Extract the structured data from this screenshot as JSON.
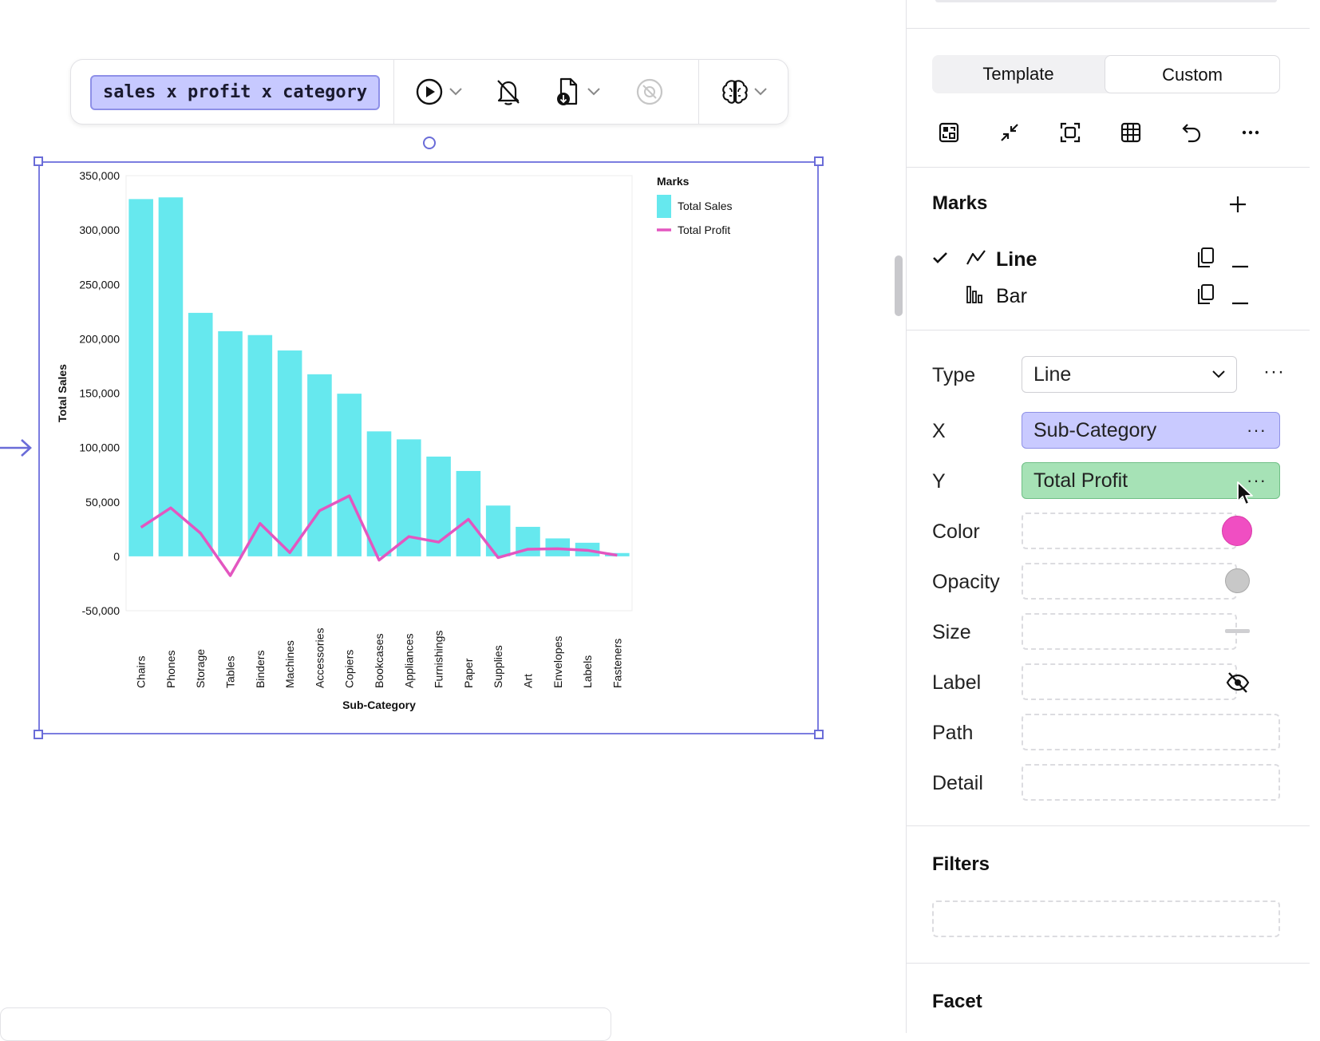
{
  "toolbar": {
    "title": "sales x profit x category",
    "buttons": [
      "play-icon",
      "bell-off-icon",
      "document-download-icon",
      "disabled-circle-icon",
      "brain-icon"
    ]
  },
  "chart_data": {
    "type": "bar",
    "categories": [
      "Chairs",
      "Phones",
      "Storage",
      "Tables",
      "Binders",
      "Machines",
      "Accessories",
      "Copiers",
      "Bookcases",
      "Appliances",
      "Furnishings",
      "Paper",
      "Supplies",
      "Art",
      "Envelopes",
      "Labels",
      "Fasteners"
    ],
    "series": [
      {
        "name": "Total Sales",
        "type": "bar",
        "color": "#66e8ee",
        "values": [
          328449,
          330007,
          223844,
          206966,
          203413,
          189239,
          167380,
          149528,
          114880,
          107532,
          91705,
          78479,
          46674,
          27119,
          16476,
          12486,
          3024
        ]
      },
      {
        "name": "Total Profit",
        "type": "line",
        "color": "#e356c0",
        "values": [
          26590,
          44516,
          21279,
          -17725,
          30222,
          3385,
          41937,
          55618,
          -3473,
          18138,
          13059,
          34054,
          -1189,
          6528,
          6964,
          5546,
          950
        ]
      }
    ],
    "ylabel": "Total Sales",
    "xlabel": "Sub-Category",
    "ylim": [
      -50000,
      350000
    ],
    "yticks": [
      350000,
      300000,
      250000,
      200000,
      150000,
      100000,
      50000,
      0,
      -50000
    ],
    "ytick_labels": [
      "350,000",
      "300,000",
      "250,000",
      "200,000",
      "150,000",
      "100,000",
      "50,000",
      "0",
      "-50,000"
    ],
    "legend": {
      "title": "Marks",
      "position": "top-right",
      "items": [
        "Total Sales",
        "Total Profit"
      ]
    }
  },
  "panel": {
    "tabs": [
      "Template",
      "Custom"
    ],
    "active_tab": "Custom",
    "icons": [
      "layout-swap-icon",
      "minimize-icon",
      "frame-icon",
      "table-icon",
      "undo-icon",
      "more-icon"
    ],
    "marks_title": "Marks",
    "marks": [
      {
        "label": "Line",
        "checked": true,
        "icon": "line-chart-icon"
      },
      {
        "label": "Bar",
        "checked": false,
        "icon": "bar-chart-icon"
      }
    ],
    "properties": {
      "type_label": "Type",
      "type_value": "Line",
      "x_label": "X",
      "x_value": "Sub-Category",
      "y_label": "Y",
      "y_value": "Total Profit",
      "color_label": "Color",
      "color_value": "#f04ec2",
      "opacity_label": "Opacity",
      "size_label": "Size",
      "label_label": "Label",
      "path_label": "Path",
      "detail_label": "Detail"
    },
    "filters_title": "Filters",
    "facet_title": "Facet",
    "more_glyph": "···"
  }
}
